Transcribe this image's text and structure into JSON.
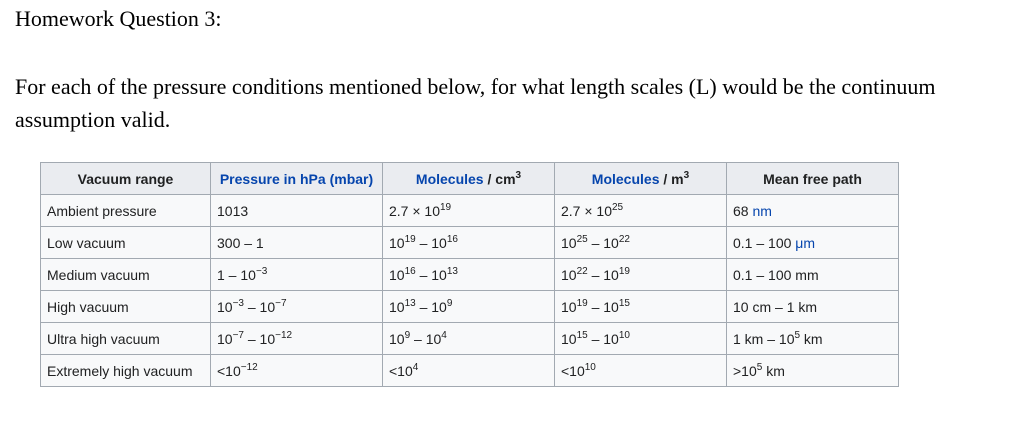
{
  "title": "Homework Question 3:",
  "question": "For each of the pressure conditions mentioned below, for what length scales (L) would be the continuum assumption valid.",
  "colors": {
    "link": "#0645ad",
    "header_bg": "#eaecf0",
    "border": "#a2a9b1"
  },
  "table": {
    "headers": [
      [
        {
          "t": "Vacuum range"
        }
      ],
      [
        {
          "t": "Pressure in ",
          "k": "link"
        },
        {
          "t": "hPa",
          "k": "link"
        },
        {
          "t": " (mbar)",
          "k": "link"
        }
      ],
      [
        {
          "t": "Molecules",
          "k": "link"
        },
        {
          "t": " / cm"
        },
        {
          "t": "3",
          "k": "sup"
        }
      ],
      [
        {
          "t": "Molecules",
          "k": "link"
        },
        {
          "t": " / m"
        },
        {
          "t": "3",
          "k": "sup"
        }
      ],
      [
        {
          "t": "Mean free path"
        }
      ]
    ],
    "rows": [
      [
        [
          {
            "t": "Ambient pressure"
          }
        ],
        [
          {
            "t": "1013"
          }
        ],
        [
          {
            "t": "2.7 × 10"
          },
          {
            "t": "19",
            "k": "sup"
          }
        ],
        [
          {
            "t": "2.7 × 10"
          },
          {
            "t": "25",
            "k": "sup"
          }
        ],
        [
          {
            "t": "68 "
          },
          {
            "t": "nm",
            "k": "link"
          }
        ]
      ],
      [
        [
          {
            "t": "Low vacuum"
          }
        ],
        [
          {
            "t": "300 – 1"
          }
        ],
        [
          {
            "t": "10"
          },
          {
            "t": "19",
            "k": "sup"
          },
          {
            "t": " – 10"
          },
          {
            "t": "16",
            "k": "sup"
          }
        ],
        [
          {
            "t": "10"
          },
          {
            "t": "25",
            "k": "sup"
          },
          {
            "t": " – 10"
          },
          {
            "t": "22",
            "k": "sup"
          }
        ],
        [
          {
            "t": "0.1 – 100 "
          },
          {
            "t": "μm",
            "k": "link"
          }
        ]
      ],
      [
        [
          {
            "t": "Medium vacuum"
          }
        ],
        [
          {
            "t": "1 – 10"
          },
          {
            "t": "−3",
            "k": "sup"
          }
        ],
        [
          {
            "t": "10"
          },
          {
            "t": "16",
            "k": "sup"
          },
          {
            "t": " – 10"
          },
          {
            "t": "13",
            "k": "sup"
          }
        ],
        [
          {
            "t": "10"
          },
          {
            "t": "22",
            "k": "sup"
          },
          {
            "t": " – 10"
          },
          {
            "t": "19",
            "k": "sup"
          }
        ],
        [
          {
            "t": "0.1 – 100 mm"
          }
        ]
      ],
      [
        [
          {
            "t": "High vacuum"
          }
        ],
        [
          {
            "t": "10"
          },
          {
            "t": "−3",
            "k": "sup"
          },
          {
            "t": " – 10"
          },
          {
            "t": "−7",
            "k": "sup"
          }
        ],
        [
          {
            "t": "10"
          },
          {
            "t": "13",
            "k": "sup"
          },
          {
            "t": " – 10"
          },
          {
            "t": "9",
            "k": "sup"
          }
        ],
        [
          {
            "t": "10"
          },
          {
            "t": "19",
            "k": "sup"
          },
          {
            "t": " – 10"
          },
          {
            "t": "15",
            "k": "sup"
          }
        ],
        [
          {
            "t": "10 cm – 1 km"
          }
        ]
      ],
      [
        [
          {
            "t": "Ultra high vacuum"
          }
        ],
        [
          {
            "t": "10"
          },
          {
            "t": "−7",
            "k": "sup"
          },
          {
            "t": " – 10"
          },
          {
            "t": "−12",
            "k": "sup"
          }
        ],
        [
          {
            "t": "10"
          },
          {
            "t": "9",
            "k": "sup"
          },
          {
            "t": " – 10"
          },
          {
            "t": "4",
            "k": "sup"
          }
        ],
        [
          {
            "t": "10"
          },
          {
            "t": "15",
            "k": "sup"
          },
          {
            "t": " – 10"
          },
          {
            "t": "10",
            "k": "sup"
          }
        ],
        [
          {
            "t": "1 km – 10"
          },
          {
            "t": "5",
            "k": "sup"
          },
          {
            "t": " km"
          }
        ]
      ],
      [
        [
          {
            "t": "Extremely high vacuum"
          }
        ],
        [
          {
            "t": "<10"
          },
          {
            "t": "−12",
            "k": "sup"
          }
        ],
        [
          {
            "t": "<10"
          },
          {
            "t": "4",
            "k": "sup"
          }
        ],
        [
          {
            "t": "<10"
          },
          {
            "t": "10",
            "k": "sup"
          }
        ],
        [
          {
            "t": ">10"
          },
          {
            "t": "5",
            "k": "sup"
          },
          {
            "t": " km"
          }
        ]
      ]
    ]
  }
}
